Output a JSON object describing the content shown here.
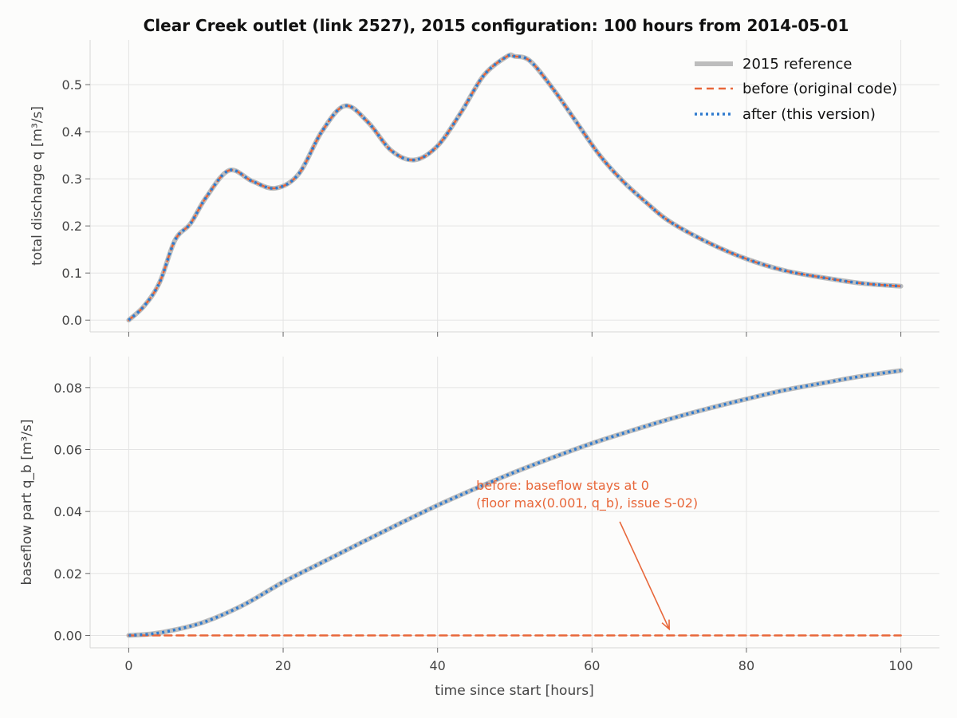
{
  "chart_data": {
    "type": "line",
    "title": "Clear Creek outlet (link 2527), 2015 configuration: 100 hours from 2014-05-01",
    "xlabel": "time since start [hours]",
    "xlim": [
      -5,
      105
    ],
    "xticks": [
      0,
      20,
      40,
      60,
      80,
      100
    ],
    "grid": true,
    "colors": {
      "reference": "#bdbdbd",
      "before": "#e8673a",
      "after": "#2f7bcf",
      "annotation": "#e8673a"
    },
    "legend": {
      "placement": "top-right",
      "entries": [
        "2015 reference",
        "before (original code)",
        "after (this version)"
      ]
    },
    "panels": [
      {
        "ylabel": "total discharge q [m³/s]",
        "ylim": [
          -0.025,
          0.595
        ],
        "yticks": [
          "0.0",
          "0.1",
          "0.2",
          "0.3",
          "0.4",
          "0.5"
        ],
        "x": [
          0,
          2,
          4,
          6,
          8,
          10,
          13,
          16,
          19,
          22,
          25,
          28,
          31,
          34,
          37,
          40,
          43,
          46,
          49,
          50,
          52,
          55,
          58,
          61,
          64,
          67,
          70,
          75,
          80,
          85,
          90,
          95,
          100
        ],
        "series": [
          {
            "name": "2015 reference",
            "values": [
              0.0,
              0.03,
              0.08,
              0.17,
              0.205,
              0.26,
              0.318,
              0.295,
              0.28,
              0.31,
              0.4,
              0.455,
              0.42,
              0.36,
              0.34,
              0.37,
              0.44,
              0.52,
              0.56,
              0.56,
              0.55,
              0.49,
              0.42,
              0.35,
              0.295,
              0.25,
              0.21,
              0.165,
              0.13,
              0.105,
              0.09,
              0.078,
              0.072
            ]
          },
          {
            "name": "before (original code)",
            "values": [
              0.0,
              0.03,
              0.08,
              0.17,
              0.205,
              0.26,
              0.318,
              0.295,
              0.28,
              0.31,
              0.4,
              0.455,
              0.42,
              0.36,
              0.34,
              0.37,
              0.44,
              0.52,
              0.56,
              0.56,
              0.55,
              0.49,
              0.42,
              0.35,
              0.295,
              0.25,
              0.21,
              0.165,
              0.13,
              0.105,
              0.09,
              0.078,
              0.072
            ]
          },
          {
            "name": "after (this version)",
            "values": [
              0.0,
              0.03,
              0.08,
              0.17,
              0.205,
              0.26,
              0.318,
              0.295,
              0.28,
              0.31,
              0.4,
              0.455,
              0.42,
              0.36,
              0.34,
              0.37,
              0.44,
              0.52,
              0.56,
              0.56,
              0.55,
              0.49,
              0.42,
              0.35,
              0.295,
              0.25,
              0.21,
              0.165,
              0.13,
              0.105,
              0.09,
              0.078,
              0.072
            ]
          }
        ]
      },
      {
        "ylabel": "baseflow part q_b [m³/s]",
        "ylim": [
          -0.004,
          0.09
        ],
        "yticks": [
          "0.00",
          "0.02",
          "0.04",
          "0.06",
          "0.08"
        ],
        "x": [
          0,
          3,
          6,
          10,
          15,
          20,
          25,
          30,
          35,
          40,
          45,
          50,
          55,
          60,
          65,
          70,
          75,
          80,
          85,
          90,
          95,
          100
        ],
        "series": [
          {
            "name": "2015 reference",
            "values": [
              0.0,
              0.0005,
              0.0018,
              0.0045,
              0.01,
              0.0172,
              0.0235,
              0.0298,
              0.036,
              0.042,
              0.0475,
              0.0527,
              0.0575,
              0.062,
              0.066,
              0.0698,
              0.0732,
              0.0763,
              0.0792,
              0.0815,
              0.0837,
              0.0855
            ]
          },
          {
            "name": "before (original code)",
            "values": [
              0,
              0,
              0,
              0,
              0,
              0,
              0,
              0,
              0,
              0,
              0,
              0,
              0,
              0,
              0,
              0,
              0,
              0,
              0,
              0,
              0,
              0
            ]
          },
          {
            "name": "after (this version)",
            "values": [
              0.0,
              0.0005,
              0.0018,
              0.0045,
              0.01,
              0.0172,
              0.0235,
              0.0298,
              0.036,
              0.042,
              0.0475,
              0.0527,
              0.0575,
              0.062,
              0.066,
              0.0698,
              0.0732,
              0.0763,
              0.0792,
              0.0815,
              0.0837,
              0.0855
            ]
          }
        ],
        "annotation": {
          "lines": [
            "before: baseflow stays at 0",
            "(floor max(0.001, q_b), issue S-02)"
          ],
          "text_at": [
            45,
            0.047
          ],
          "arrow_to": [
            70,
            0.001
          ]
        }
      }
    ]
  }
}
